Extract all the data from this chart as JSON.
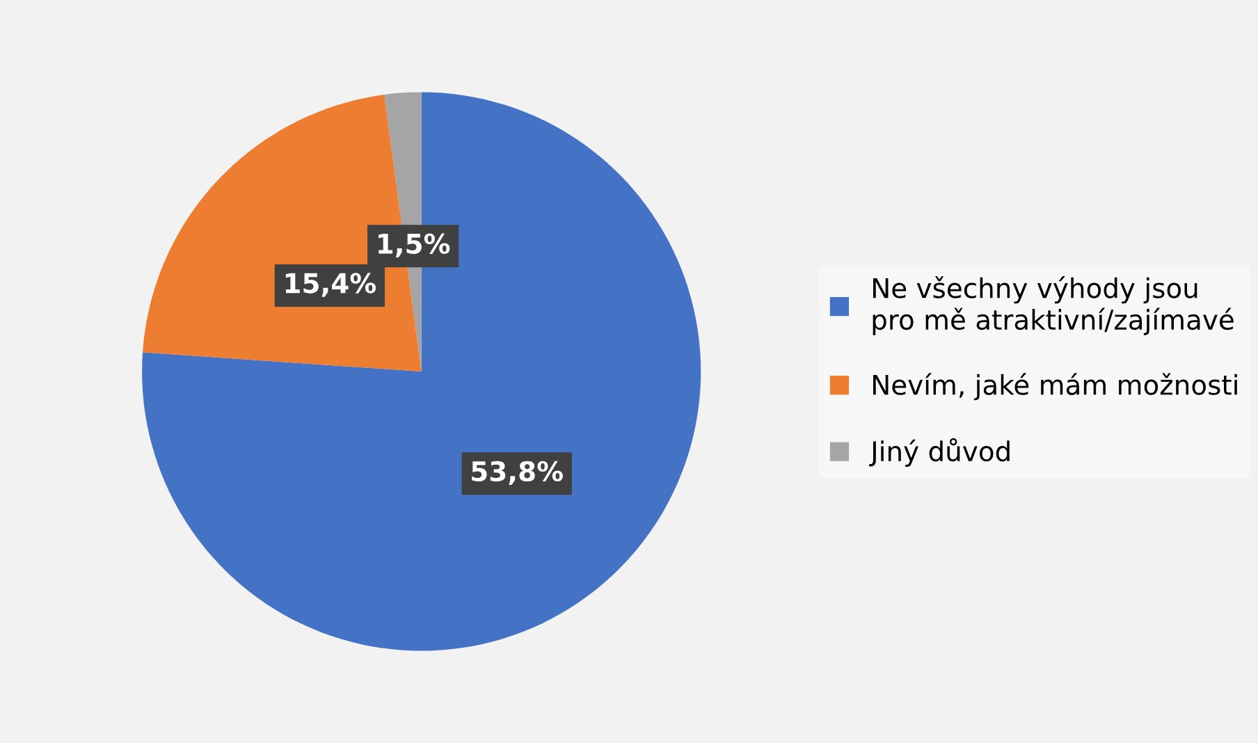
{
  "chart_data": {
    "type": "pie",
    "categories": [
      "Ne všechny výhody jsou pro mě atraktivní/zajímavé",
      "Nevím, jaké mám možnosti",
      "Jiný důvod"
    ],
    "values": [
      53.8,
      15.4,
      1.5
    ],
    "colors": [
      "#4472c4",
      "#ed7d31",
      "#a5a5a5"
    ],
    "value_labels": [
      "53,8%",
      "15,4%",
      "1,5%"
    ],
    "legend": "right"
  }
}
